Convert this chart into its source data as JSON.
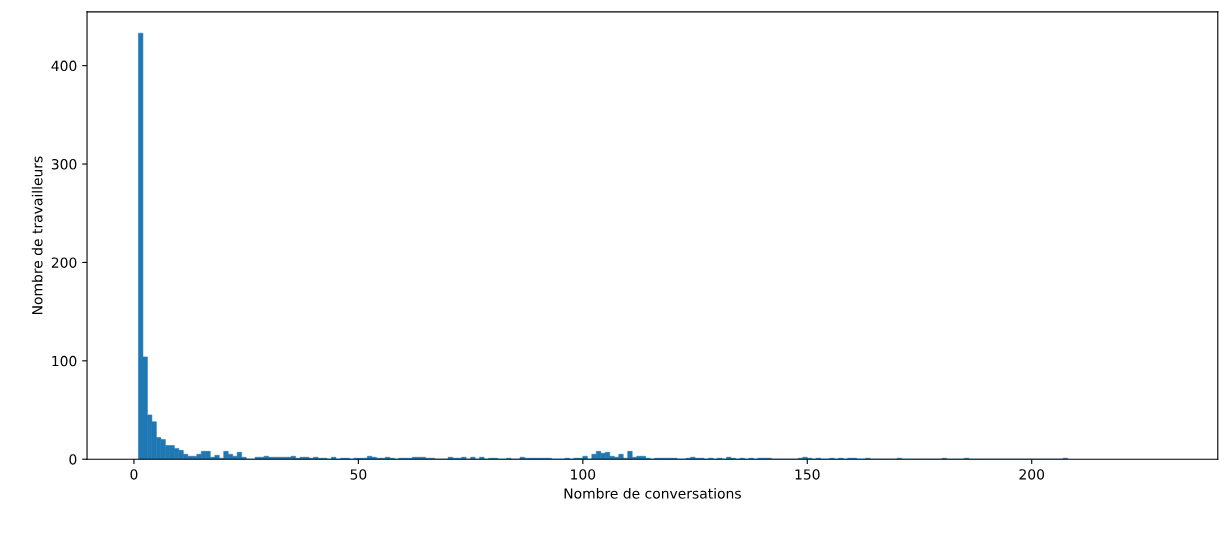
{
  "chart_data": {
    "type": "histogram",
    "xlabel": "Nombre de conversations",
    "ylabel": "Nombre de travailleurs",
    "color": "#1f77b4",
    "bins": [
      1,
      2,
      3,
      4,
      5,
      6,
      7,
      8,
      9,
      10,
      11,
      12,
      13,
      14,
      15,
      16,
      17,
      18,
      19,
      20,
      21,
      22,
      23,
      24,
      25,
      27,
      28,
      29,
      30,
      31,
      32,
      33,
      34,
      35,
      36,
      37,
      38,
      39,
      40,
      41,
      42,
      43,
      44,
      45,
      46,
      47,
      48,
      49,
      50,
      51,
      52,
      53,
      54,
      55,
      56,
      57,
      58,
      59,
      60,
      61,
      62,
      63,
      64,
      65,
      66,
      67,
      70,
      71,
      72,
      73,
      74,
      75,
      76,
      77,
      78,
      79,
      80,
      81,
      83,
      84,
      86,
      87,
      88,
      89,
      90,
      91,
      92,
      93,
      96,
      97,
      98,
      99,
      100,
      101,
      102,
      103,
      104,
      105,
      106,
      107,
      108,
      109,
      110,
      111,
      112,
      113,
      114,
      115,
      116,
      117,
      118,
      119,
      120,
      121,
      123,
      124,
      125,
      126,
      127,
      128,
      129,
      130,
      131,
      132,
      133,
      134,
      135,
      136,
      137,
      138,
      139,
      140,
      141,
      142,
      148,
      149,
      150,
      151,
      152,
      153,
      155,
      156,
      157,
      158,
      159,
      160,
      161,
      163,
      164,
      170,
      171,
      180,
      181,
      185,
      186,
      207,
      208
    ],
    "values": [
      433,
      104,
      45,
      38,
      22,
      20,
      14,
      14,
      11,
      9,
      5,
      3,
      3,
      5,
      8,
      8,
      2,
      4,
      1,
      8,
      5,
      3,
      7,
      2,
      0,
      2,
      2,
      3,
      2,
      2,
      2,
      2,
      2,
      3,
      1,
      2,
      2,
      1,
      2,
      1,
      1,
      0,
      2,
      0,
      1,
      1,
      0,
      1,
      1,
      1,
      3,
      2,
      1,
      1,
      2,
      1,
      0,
      1,
      1,
      1,
      2,
      2,
      2,
      1,
      1,
      0,
      2,
      1,
      1,
      2,
      0,
      2,
      0,
      2,
      0,
      1,
      1,
      0,
      1,
      0,
      2,
      1,
      1,
      1,
      1,
      1,
      1,
      0,
      1,
      0,
      1,
      1,
      3,
      0,
      5,
      8,
      6,
      7,
      3,
      2,
      5,
      1,
      8,
      2,
      3,
      3,
      1,
      0,
      1,
      1,
      1,
      1,
      1,
      0,
      1,
      2,
      1,
      1,
      0,
      1,
      0,
      1,
      0,
      2,
      1,
      0,
      1,
      0,
      1,
      0,
      1,
      1,
      1,
      0,
      1,
      2,
      1,
      0,
      1,
      0,
      1,
      0,
      1,
      0,
      1,
      1,
      0,
      1,
      0,
      1,
      0,
      1,
      0,
      1,
      0,
      1
    ],
    "xlim": [
      -10.45,
      241.45
    ],
    "xticks": [
      0,
      50,
      100,
      150,
      200
    ],
    "ylim": [
      0,
      454.65
    ],
    "yticks": [
      0,
      100,
      200,
      300,
      400
    ],
    "grid": false
  }
}
